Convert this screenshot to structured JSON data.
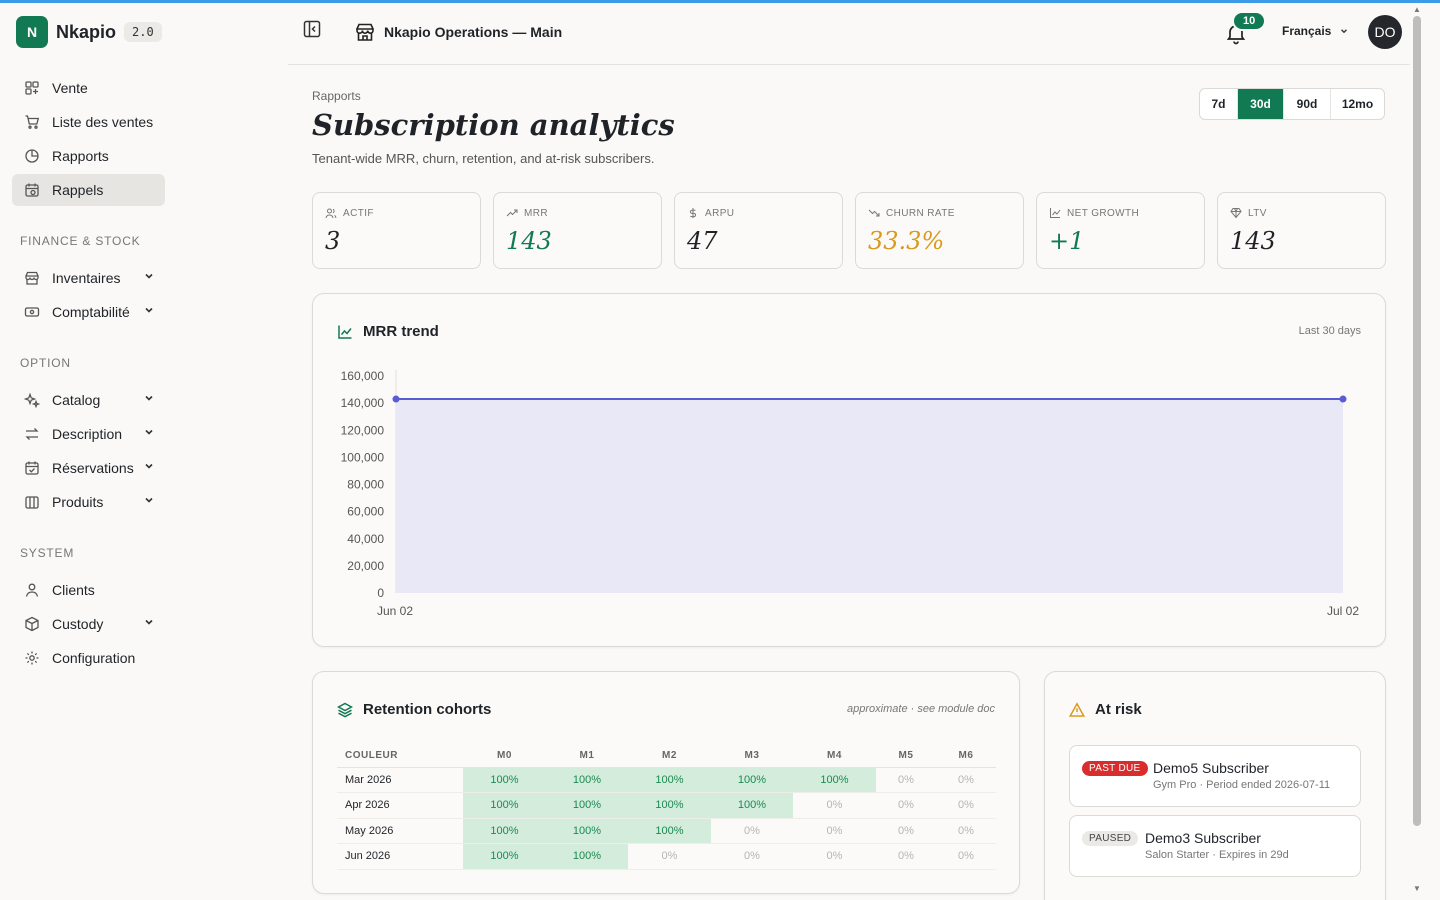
{
  "brand": {
    "name": "Nkapio",
    "version": "2.0",
    "logo_letter": "N"
  },
  "sidebar": {
    "main_items": [
      {
        "label": "Vente",
        "icon": "grid-plus-icon"
      },
      {
        "label": "Liste des ventes",
        "icon": "cart-icon"
      },
      {
        "label": "Rapports",
        "icon": "pie-chart-icon"
      },
      {
        "label": "Rappels",
        "icon": "calendar-clock-icon",
        "active": true
      }
    ],
    "sections": [
      {
        "label": "FINANCE & STOCK",
        "items": [
          {
            "label": "Inventaires",
            "icon": "store-icon"
          },
          {
            "label": "Comptabilité",
            "icon": "banknote-icon"
          }
        ]
      },
      {
        "label": "OPTION",
        "items": [
          {
            "label": "Catalog",
            "icon": "sparkles-icon"
          },
          {
            "label": "Description",
            "icon": "arrows-swap-icon"
          },
          {
            "label": "Réservations",
            "icon": "calendar-check-icon"
          },
          {
            "label": "Produits",
            "icon": "columns-icon"
          }
        ]
      },
      {
        "label": "SYSTEM",
        "items": [
          {
            "label": "Clients",
            "icon": "user-icon"
          },
          {
            "label": "Custody",
            "icon": "box-icon"
          },
          {
            "label": "Configuration",
            "icon": "gear-icon"
          }
        ]
      }
    ]
  },
  "header": {
    "store_name": "Nkapio Operations — Main",
    "notification_count": "10",
    "language": "Français",
    "avatar_initials": "DO"
  },
  "page": {
    "breadcrumb": "Rapports",
    "title": "Subscription analytics",
    "subtitle": "Tenant-wide MRR, churn, retention, and at-risk subscribers.",
    "ranges": [
      {
        "label": "7d",
        "selected": false
      },
      {
        "label": "30d",
        "selected": true
      },
      {
        "label": "90d",
        "selected": false
      },
      {
        "label": "12mo",
        "selected": false
      }
    ]
  },
  "kpis": [
    {
      "label": "ACTIF",
      "value": "3",
      "icon": "users-icon",
      "color": "#1f2328"
    },
    {
      "label": "MRR",
      "value": "143",
      "icon": "trend-up-icon",
      "color": "#127a52"
    },
    {
      "label": "ARPU",
      "value": "47",
      "icon": "dollar-icon",
      "color": "#1f2328"
    },
    {
      "label": "CHURN RATE",
      "value": "33.3%",
      "icon": "trend-down-icon",
      "color": "#d99a1c"
    },
    {
      "label": "NET GROWTH",
      "value": "+1",
      "icon": "line-chart-icon",
      "color": "#127a52"
    },
    {
      "label": "LTV",
      "value": "143",
      "icon": "gem-icon",
      "color": "#1f2328"
    }
  ],
  "mrr_card": {
    "title": "MRR trend",
    "note": "Last 30 days"
  },
  "chart_data": {
    "type": "area",
    "title": "MRR trend",
    "x": [
      "Jun 02",
      "Jul 02"
    ],
    "series": [
      {
        "values": [
          143000,
          143000
        ]
      }
    ],
    "ylim": [
      0,
      160000
    ],
    "yticks": [
      "160,000",
      "140,000",
      "120,000",
      "100,000",
      "80,000",
      "60,000",
      "40,000",
      "20,000",
      "0"
    ],
    "xticks": [
      "Jun 02",
      "Jul 02"
    ],
    "grid": false,
    "colors": {
      "line": "#5b5bd6",
      "fill": "#e8e8f6"
    }
  },
  "retention": {
    "title": "Retention cohorts",
    "note": "approximate · see module doc",
    "columns": [
      "COULEUR",
      "M0",
      "M1",
      "M2",
      "M3",
      "M4",
      "M5",
      "M6"
    ],
    "rows": [
      {
        "label": "Mar 2026",
        "cells": [
          "100%",
          "100%",
          "100%",
          "100%",
          "100%",
          "0%",
          "0%"
        ]
      },
      {
        "label": "Apr 2026",
        "cells": [
          "100%",
          "100%",
          "100%",
          "100%",
          "0%",
          "0%",
          "0%"
        ]
      },
      {
        "label": "May 2026",
        "cells": [
          "100%",
          "100%",
          "100%",
          "0%",
          "0%",
          "0%",
          "0%"
        ]
      },
      {
        "label": "Jun 2026",
        "cells": [
          "100%",
          "100%",
          "0%",
          "0%",
          "0%",
          "0%",
          "0%"
        ]
      }
    ]
  },
  "at_risk": {
    "title": "At risk",
    "items": [
      {
        "status": "PAST DUE",
        "name": "Demo5 Subscriber",
        "meta": "Gym Pro · Period ended 2026-07-11",
        "status_color": "#d92d2d"
      },
      {
        "status": "PAUSED",
        "name": "Demo3 Subscriber",
        "meta": "Salon Starter · Expires in 29d",
        "status_color": "#ebe9e5"
      }
    ]
  }
}
